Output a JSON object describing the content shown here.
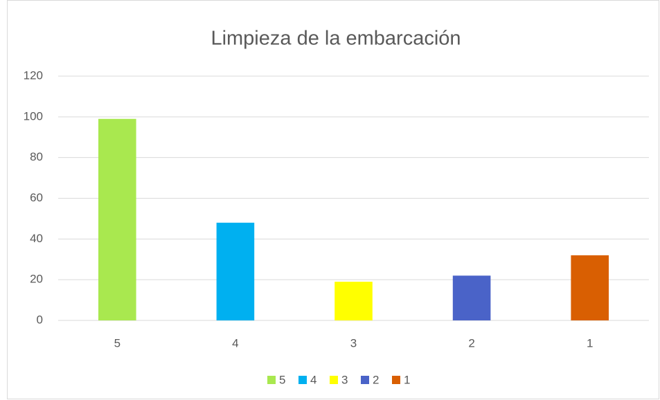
{
  "chart_data": {
    "type": "bar",
    "title": "Limpieza de la embarcación",
    "categories": [
      "5",
      "4",
      "3",
      "2",
      "1"
    ],
    "values": [
      99,
      48,
      19,
      22,
      32
    ],
    "colors": [
      "#a9e84f",
      "#00b0f0",
      "#ffff00",
      "#4a63c8",
      "#d95f02"
    ],
    "ylim": [
      0,
      120
    ],
    "yticks": [
      0,
      20,
      40,
      60,
      80,
      100,
      120
    ],
    "grid": true,
    "legend": "bottom"
  }
}
